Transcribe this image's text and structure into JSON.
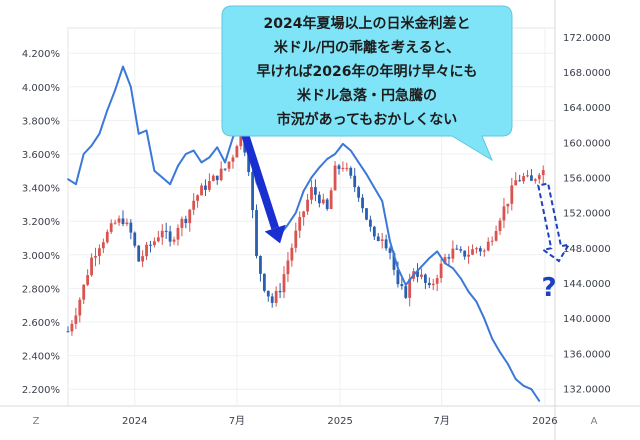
{
  "chart_data": {
    "type": "line",
    "title": "",
    "xlabel": "",
    "ylabel": "",
    "x_ticks": [
      "2024",
      "7月",
      "2025",
      "7月",
      "2026"
    ],
    "y_left_ticks": [
      "2.200%",
      "2.400%",
      "2.600%",
      "2.800%",
      "3.000%",
      "3.200%",
      "3.400%",
      "3.600%",
      "3.800%",
      "4.000%",
      "4.200%"
    ],
    "y_right_ticks": [
      "132.0000",
      "136.0000",
      "140.0000",
      "144.0000",
      "148.0000",
      "152.0000",
      "156.0000",
      "160.0000",
      "164.0000",
      "168.0000",
      "172.0000"
    ],
    "y_left_range": [
      2.1,
      4.35
    ],
    "y_right_range": [
      130,
      173
    ],
    "x_range": [
      "2023-09-04",
      "2026-01-19"
    ],
    "grid": true,
    "series": [
      {
        "kind": "line",
        "axis": "left",
        "color": "#3b78d8",
        "x": [
          "2023-09-04",
          "2023-09-18",
          "2023-10-02",
          "2023-10-16",
          "2023-10-30",
          "2023-11-13",
          "2023-11-27",
          "2023-12-11",
          "2023-12-25",
          "2024-01-08",
          "2024-01-22",
          "2024-02-05",
          "2024-02-19",
          "2024-03-04",
          "2024-03-18",
          "2024-04-01",
          "2024-04-15",
          "2024-04-29",
          "2024-05-13",
          "2024-05-27",
          "2024-06-10",
          "2024-06-24",
          "2024-07-08",
          "2024-07-22",
          "2024-08-05",
          "2024-08-19",
          "2024-09-02",
          "2024-09-16",
          "2024-09-30",
          "2024-10-14",
          "2024-10-28",
          "2024-11-11",
          "2024-11-25",
          "2024-12-09",
          "2024-12-23",
          "2025-01-06",
          "2025-01-20",
          "2025-02-03",
          "2025-02-17",
          "2025-03-03",
          "2025-03-17",
          "2025-03-31",
          "2025-04-14",
          "2025-04-28",
          "2025-05-12",
          "2025-05-26",
          "2025-06-09",
          "2025-06-23",
          "2025-07-07",
          "2025-07-21",
          "2025-08-04",
          "2025-08-18",
          "2025-09-01",
          "2025-09-15",
          "2025-09-29",
          "2025-10-13",
          "2025-10-27",
          "2025-11-10",
          "2025-11-24",
          "2025-12-08",
          "2025-12-22"
        ],
        "values": [
          3.45,
          3.42,
          3.6,
          3.65,
          3.72,
          3.86,
          3.98,
          4.12,
          4.0,
          3.72,
          3.74,
          3.5,
          3.46,
          3.42,
          3.53,
          3.6,
          3.62,
          3.55,
          3.58,
          3.64,
          3.55,
          3.7,
          3.76,
          3.65,
          3.43,
          3.32,
          3.26,
          3.12,
          3.18,
          3.25,
          3.38,
          3.46,
          3.52,
          3.57,
          3.6,
          3.66,
          3.62,
          3.55,
          3.48,
          3.4,
          3.32,
          3.08,
          2.92,
          2.82,
          2.88,
          2.93,
          2.98,
          3.02,
          2.95,
          2.92,
          2.86,
          2.78,
          2.72,
          2.62,
          2.5,
          2.42,
          2.35,
          2.26,
          2.22,
          2.2,
          2.13
        ]
      },
      {
        "kind": "candlestick",
        "axis": "right",
        "up_color": "#d9534f",
        "down_color": "#2a5fb0",
        "x": [
          "2023-09-04",
          "2023-09-18",
          "2023-10-02",
          "2023-10-16",
          "2023-10-30",
          "2023-11-13",
          "2023-11-27",
          "2023-12-11",
          "2023-12-25",
          "2024-01-08",
          "2024-01-22",
          "2024-02-05",
          "2024-02-19",
          "2024-03-04",
          "2024-03-18",
          "2024-04-01",
          "2024-04-15",
          "2024-04-29",
          "2024-05-13",
          "2024-05-27",
          "2024-06-10",
          "2024-06-24",
          "2024-07-08",
          "2024-07-22",
          "2024-08-05",
          "2024-08-19",
          "2024-09-02",
          "2024-09-16",
          "2024-09-30",
          "2024-10-14",
          "2024-10-28",
          "2024-11-11",
          "2024-11-25",
          "2024-12-09",
          "2024-12-23",
          "2025-01-06",
          "2025-01-20",
          "2025-02-03",
          "2025-02-17",
          "2025-03-03",
          "2025-03-17",
          "2025-03-31",
          "2025-04-14",
          "2025-04-28",
          "2025-05-12",
          "2025-05-26",
          "2025-06-09",
          "2025-06-23",
          "2025-07-07",
          "2025-07-21",
          "2025-08-04",
          "2025-08-18",
          "2025-09-01",
          "2025-09-15",
          "2025-09-29",
          "2025-10-13",
          "2025-10-27",
          "2025-11-10",
          "2025-11-24",
          "2025-12-08",
          "2025-12-22"
        ],
        "values": [
          138.5,
          140.8,
          143.6,
          146.8,
          148.4,
          149.6,
          150.8,
          151.2,
          149.6,
          146.5,
          147.8,
          148.8,
          150.2,
          148.4,
          150.6,
          151.4,
          153.4,
          154.6,
          155.4,
          156.2,
          157.0,
          158.6,
          161.4,
          157.2,
          146.8,
          143.6,
          141.8,
          143.4,
          146.6,
          149.6,
          152.2,
          154.6,
          153.6,
          152.2,
          156.8,
          157.4,
          155.8,
          154.2,
          151.4,
          148.8,
          149.4,
          147.6,
          143.4,
          142.8,
          145.6,
          144.6,
          143.2,
          145.0,
          146.8,
          147.6,
          147.2,
          147.4,
          148.0,
          147.6,
          149.4,
          151.6,
          153.4,
          155.6,
          156.0,
          155.4,
          156.8
        ]
      }
    ],
    "projection_arrow": {
      "from_date": "2025-12-29",
      "from_value": 155.2,
      "to_date": "2026-01-26",
      "to_value": 146.5
    },
    "question_mark": "?",
    "down_arrow": {
      "from_date": "2024-07-15",
      "from_value": 161.0,
      "to_date": "2024-09-16",
      "to_value": 148.5
    },
    "annotation": {
      "lines": [
        "2024年夏場以上の日米金利差と",
        "米ドル/円の乖離を考えると、",
        "早ければ2026年の年明け早々にも",
        "米ドル急落・円急騰の",
        "市況があってもおかしくない"
      ],
      "fill": "#7fe4f7"
    },
    "axis_buttons": {
      "left": "Z",
      "right": "A"
    }
  }
}
